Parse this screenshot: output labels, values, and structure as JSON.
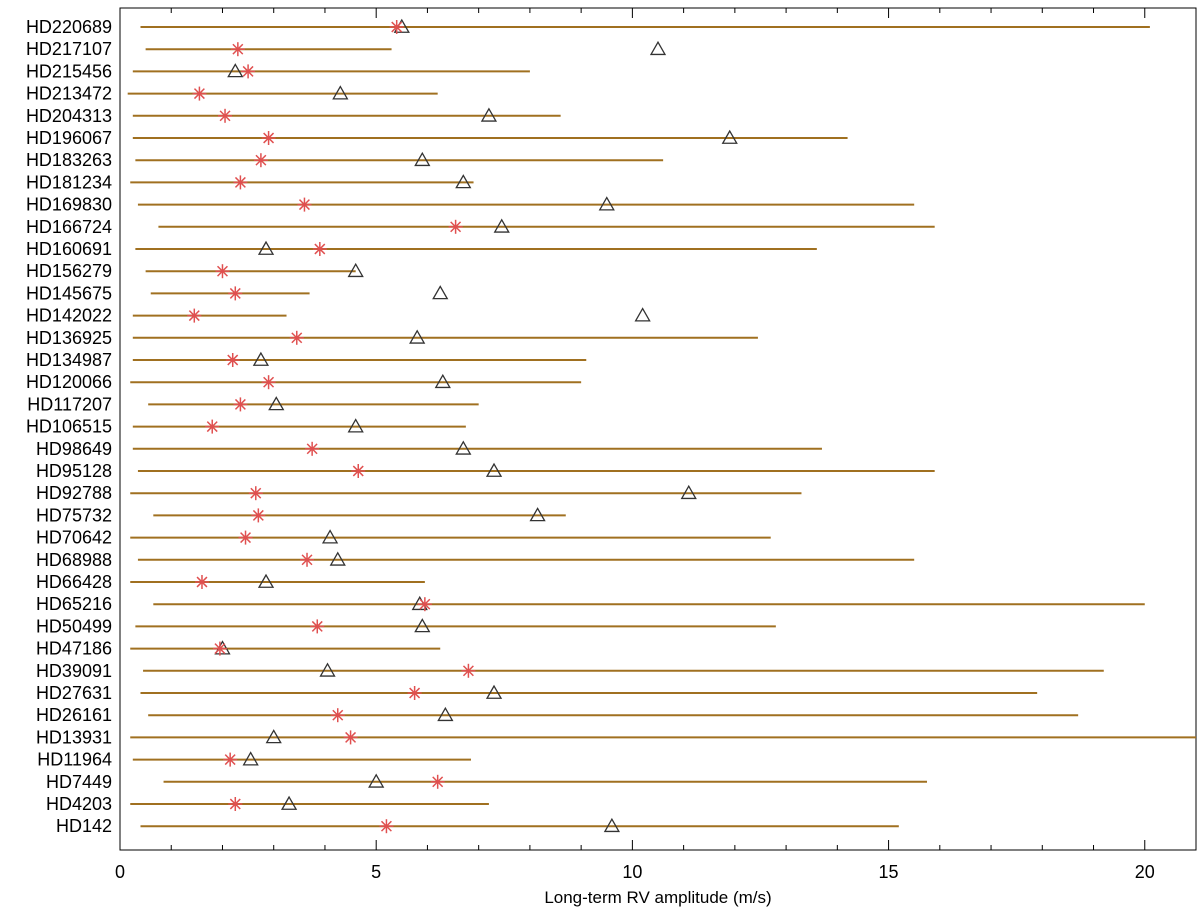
{
  "chart_data": {
    "type": "range-plot",
    "xlabel": "Long-term RV amplitude (m/s)",
    "xlim": [
      0,
      21
    ],
    "xticks_major": [
      0,
      5,
      10,
      15,
      20
    ],
    "xticks_minor": [
      1,
      2,
      3,
      4,
      6,
      7,
      8,
      9,
      11,
      12,
      13,
      14,
      16,
      17,
      18,
      19,
      21
    ],
    "grid": false,
    "colors": {
      "range": "#a07020",
      "star": "#e05050",
      "triangle": "#333333"
    },
    "rows": [
      {
        "name": "HD220689",
        "range": [
          0.4,
          20.1
        ],
        "star": 5.4,
        "triangle": 5.5
      },
      {
        "name": "HD217107",
        "range": [
          0.5,
          5.3
        ],
        "star": 2.3,
        "triangle": 10.5
      },
      {
        "name": "HD215456",
        "range": [
          0.25,
          8.0
        ],
        "star": 2.5,
        "triangle": 2.25
      },
      {
        "name": "HD213472",
        "range": [
          0.15,
          6.2
        ],
        "star": 1.55,
        "triangle": 4.3
      },
      {
        "name": "HD204313",
        "range": [
          0.25,
          8.6
        ],
        "star": 2.05,
        "triangle": 7.2
      },
      {
        "name": "HD196067",
        "range": [
          0.25,
          14.2
        ],
        "star": 2.9,
        "triangle": 11.9
      },
      {
        "name": "HD183263",
        "range": [
          0.3,
          10.6
        ],
        "star": 2.75,
        "triangle": 5.9
      },
      {
        "name": "HD181234",
        "range": [
          0.2,
          6.9
        ],
        "star": 2.35,
        "triangle": 6.7
      },
      {
        "name": "HD169830",
        "range": [
          0.35,
          15.5
        ],
        "star": 3.6,
        "triangle": 9.5
      },
      {
        "name": "HD166724",
        "range": [
          0.75,
          15.9
        ],
        "star": 6.55,
        "triangle": 7.45
      },
      {
        "name": "HD160691",
        "range": [
          0.3,
          13.6
        ],
        "star": 3.9,
        "triangle": 2.85
      },
      {
        "name": "HD156279",
        "range": [
          0.5,
          4.6
        ],
        "star": 2.0,
        "triangle": 4.6
      },
      {
        "name": "HD145675",
        "range": [
          0.6,
          3.7
        ],
        "star": 2.25,
        "triangle": 6.25
      },
      {
        "name": "HD142022",
        "range": [
          0.25,
          3.25
        ],
        "star": 1.45,
        "triangle": 10.2
      },
      {
        "name": "HD136925",
        "range": [
          0.25,
          12.45
        ],
        "star": 3.45,
        "triangle": 5.8
      },
      {
        "name": "HD134987",
        "range": [
          0.25,
          9.1
        ],
        "star": 2.2,
        "triangle": 2.75
      },
      {
        "name": "HD120066",
        "range": [
          0.2,
          9.0
        ],
        "star": 2.9,
        "triangle": 6.3
      },
      {
        "name": "HD117207",
        "range": [
          0.55,
          7.0
        ],
        "star": 2.35,
        "triangle": 3.05
      },
      {
        "name": "HD106515",
        "range": [
          0.25,
          6.75
        ],
        "star": 1.8,
        "triangle": 4.6
      },
      {
        "name": "HD98649",
        "range": [
          0.25,
          13.7
        ],
        "star": 3.75,
        "triangle": 6.7
      },
      {
        "name": "HD95128",
        "range": [
          0.35,
          15.9
        ],
        "star": 4.65,
        "triangle": 7.3
      },
      {
        "name": "HD92788",
        "range": [
          0.2,
          13.3
        ],
        "star": 2.65,
        "triangle": 11.1
      },
      {
        "name": "HD75732",
        "range": [
          0.65,
          8.7
        ],
        "star": 2.7,
        "triangle": 8.15
      },
      {
        "name": "HD70642",
        "range": [
          0.2,
          12.7
        ],
        "star": 2.45,
        "triangle": 4.1
      },
      {
        "name": "HD68988",
        "range": [
          0.35,
          15.5
        ],
        "star": 3.65,
        "triangle": 4.25
      },
      {
        "name": "HD66428",
        "range": [
          0.2,
          5.95
        ],
        "star": 1.6,
        "triangle": 2.85
      },
      {
        "name": "HD65216",
        "range": [
          0.65,
          20.0
        ],
        "star": 5.95,
        "triangle": 5.85
      },
      {
        "name": "HD50499",
        "range": [
          0.3,
          12.8
        ],
        "star": 3.85,
        "triangle": 5.9
      },
      {
        "name": "HD47186",
        "range": [
          0.2,
          6.25
        ],
        "star": 1.95,
        "triangle": 2.0
      },
      {
        "name": "HD39091",
        "range": [
          0.45,
          19.2
        ],
        "star": 6.8,
        "triangle": 4.05
      },
      {
        "name": "HD27631",
        "range": [
          0.4,
          17.9
        ],
        "star": 5.75,
        "triangle": 7.3
      },
      {
        "name": "HD26161",
        "range": [
          0.55,
          18.7
        ],
        "star": 4.25,
        "triangle": 6.35
      },
      {
        "name": "HD13931",
        "range": [
          0.2,
          21.0
        ],
        "star": 4.5,
        "triangle": 3.0
      },
      {
        "name": "HD11964",
        "range": [
          0.25,
          6.85
        ],
        "star": 2.15,
        "triangle": 2.55
      },
      {
        "name": "HD7449",
        "range": [
          0.85,
          15.75
        ],
        "star": 6.2,
        "triangle": 5.0
      },
      {
        "name": "HD4203",
        "range": [
          0.2,
          7.2
        ],
        "star": 2.25,
        "triangle": 3.3
      },
      {
        "name": "HD142",
        "range": [
          0.4,
          15.2
        ],
        "star": 5.2,
        "triangle": 9.6
      }
    ]
  }
}
